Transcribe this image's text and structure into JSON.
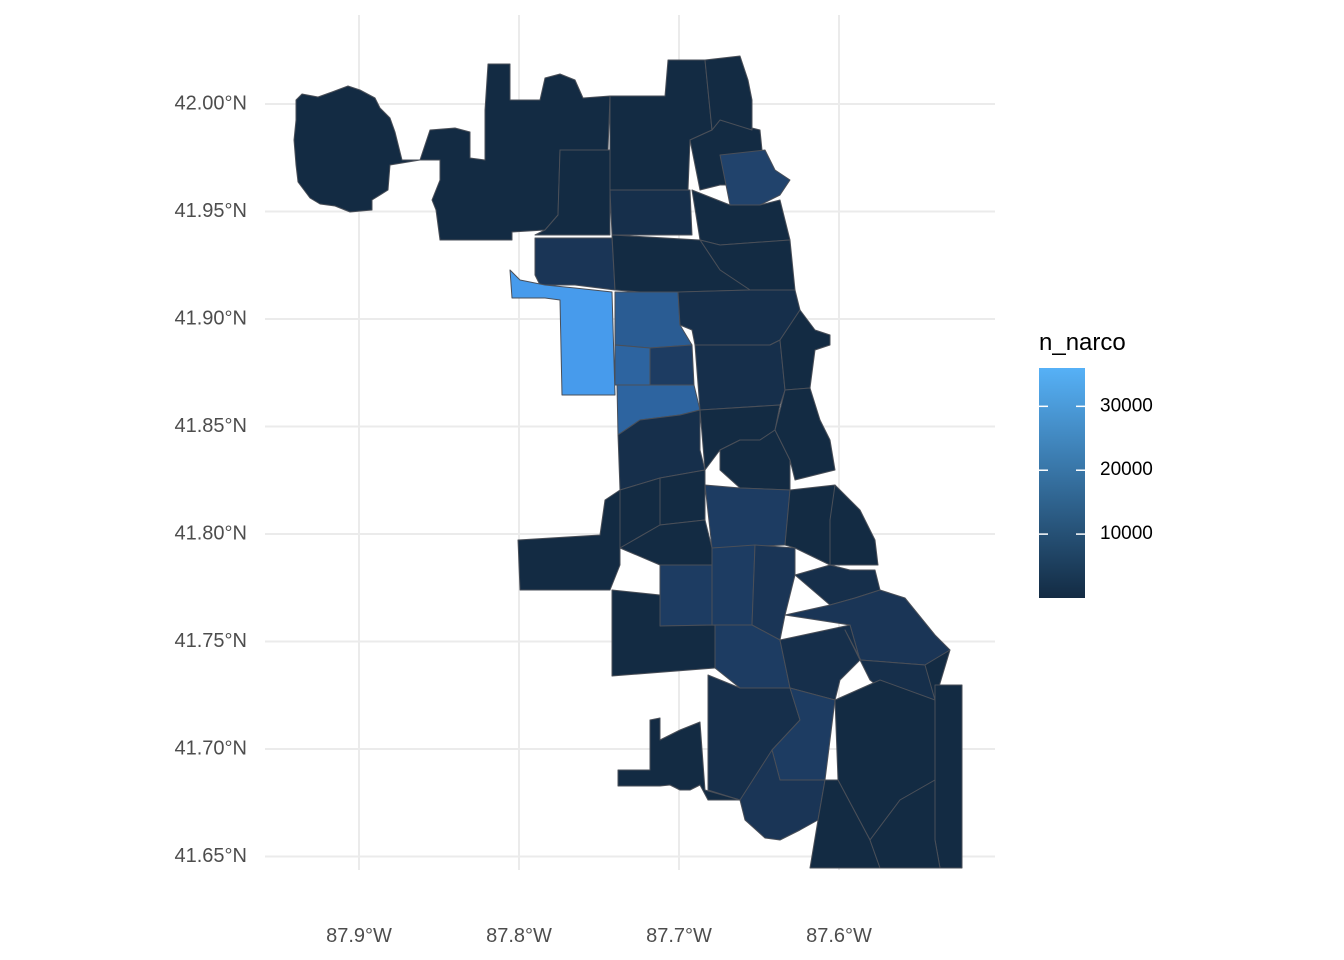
{
  "chart_data": {
    "type": "choropleth",
    "xlabel": "",
    "ylabel": "",
    "x_ticks": [
      {
        "value": -87.9,
        "label": "87.9°W"
      },
      {
        "value": -87.8,
        "label": "87.8°W"
      },
      {
        "value": -87.7,
        "label": "87.7°W"
      },
      {
        "value": -87.6,
        "label": "87.6°W"
      }
    ],
    "y_ticks": [
      {
        "value": 42.0,
        "label": "42.00°N"
      },
      {
        "value": 41.95,
        "label": "41.95°N"
      },
      {
        "value": 41.9,
        "label": "41.90°N"
      },
      {
        "value": 41.85,
        "label": "41.85°N"
      },
      {
        "value": 41.8,
        "label": "41.80°N"
      },
      {
        "value": 41.75,
        "label": "41.75°N"
      },
      {
        "value": 41.7,
        "label": "41.70°N"
      },
      {
        "value": 41.65,
        "label": "41.65°N"
      }
    ],
    "xlim": [
      -87.96,
      -87.5
    ],
    "ylim": [
      41.635,
      42.045
    ],
    "grid": true,
    "legend": {
      "title": "n_narco",
      "position": "right",
      "breaks": [
        {
          "value": 10000,
          "label": "10000"
        },
        {
          "value": 20000,
          "label": "20000"
        },
        {
          "value": 30000,
          "label": "30000"
        }
      ],
      "min": 0,
      "max": 36000,
      "low_color": "#132B43",
      "high_color": "#56B1F7"
    }
  }
}
